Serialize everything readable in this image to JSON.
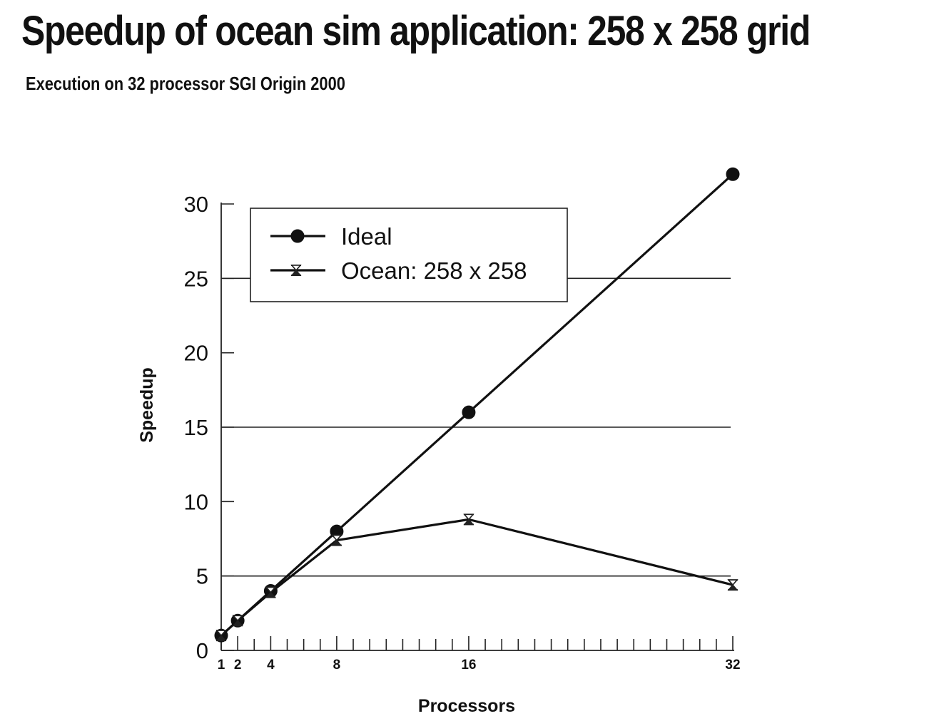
{
  "slide": {
    "title": "Speedup of ocean sim application: 258 x 258 grid",
    "subtitle": "Execution on 32 processor SGI Origin 2000"
  },
  "chart_data": {
    "type": "line",
    "title": "Speedup of ocean sim application: 258 x 258 grid",
    "subtitle": "Execution on 32 processor SGI Origin 2000",
    "xlabel": "Processors",
    "ylabel": "Speedup",
    "xlim": [
      1,
      32
    ],
    "ylim": [
      0,
      30
    ],
    "x_tick_labels": [
      1,
      2,
      4,
      8,
      16,
      32
    ],
    "y_tick_labels": [
      0,
      5,
      10,
      15,
      20,
      25,
      30
    ],
    "grid": "horizontal lines at 5, 15 and 25",
    "legend_position": "top-left",
    "series": [
      {
        "name": "Ideal",
        "marker": "filled-circle",
        "x": [
          1,
          2,
          4,
          8,
          16,
          32
        ],
        "y": [
          1,
          2,
          4,
          8,
          16,
          32
        ]
      },
      {
        "name": "Ocean: 258 x 258",
        "marker": "hourglass",
        "x": [
          1,
          2,
          4,
          8,
          16,
          32
        ],
        "y": [
          1,
          2,
          3.9,
          7.4,
          8.8,
          4.4
        ]
      }
    ]
  }
}
